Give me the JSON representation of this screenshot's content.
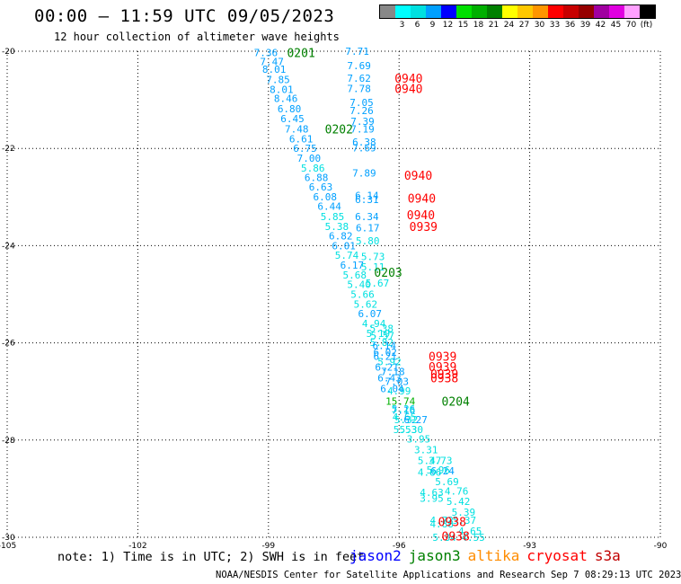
{
  "header": {
    "title": "00:00 – 11:59 UTC 09/05/2023",
    "subtitle": "12 hour collection of altimeter wave heights"
  },
  "legend": {
    "unit": "(ft)",
    "bins": [
      {
        "label": "",
        "color": "#888888"
      },
      {
        "label": "3",
        "color": "#00ffff"
      },
      {
        "label": "6",
        "color": "#00e0e0"
      },
      {
        "label": "9",
        "color": "#00a0ff"
      },
      {
        "label": "12",
        "color": "#0000ff"
      },
      {
        "label": "15",
        "color": "#00e000"
      },
      {
        "label": "18",
        "color": "#00b000"
      },
      {
        "label": "21",
        "color": "#008000"
      },
      {
        "label": "24",
        "color": "#ffff00"
      },
      {
        "label": "27",
        "color": "#ffc800"
      },
      {
        "label": "30",
        "color": "#ff9600"
      },
      {
        "label": "33",
        "color": "#ff0000"
      },
      {
        "label": "36",
        "color": "#c80000"
      },
      {
        "label": "39",
        "color": "#960000"
      },
      {
        "label": "42",
        "color": "#a000a0"
      },
      {
        "label": "45",
        "color": "#e000e0"
      },
      {
        "label": "70",
        "color": "#ffa0ff"
      },
      {
        "label": "",
        "color": "#000000"
      }
    ]
  },
  "footer": {
    "note": "note: 1) Time is in UTC; 2) SWH is in feet",
    "satellites": [
      {
        "name": "jason2",
        "color": "#0000ff"
      },
      {
        "name": "jason3",
        "color": "#008000"
      },
      {
        "name": "altika",
        "color": "#ff8c00"
      },
      {
        "name": "cryosat",
        "color": "#ff0000"
      },
      {
        "name": "s3a",
        "color": "#c00000"
      }
    ],
    "credit": "NOAA/NESDIS Center for Satellite Applications and Research    Sep  7 08:29:13 UTC 2023"
  },
  "chart_data": {
    "type": "scatter",
    "xlim": [
      -105,
      -90
    ],
    "ylim": [
      -30,
      -20
    ],
    "x_ticks": [
      -105,
      -102,
      -99,
      -96,
      -93,
      -90
    ],
    "x_tick_labels": [
      "-105",
      "-102",
      "-99",
      "-96",
      "-93",
      "-90"
    ],
    "y_ticks": [
      -20,
      -22,
      -24,
      -26,
      -28,
      -30
    ],
    "y_tick_labels": [
      "-20",
      "-22",
      "-24",
      "-26",
      "-28",
      "-30"
    ],
    "grid": true,
    "wave_heights": [
      {
        "lon": -99.06,
        "lat": -20.03,
        "text": "7.36"
      },
      {
        "lon": -98.92,
        "lat": -20.21,
        "text": "7.47"
      },
      {
        "lon": -98.87,
        "lat": -20.37,
        "text": "8.01"
      },
      {
        "lon": -98.78,
        "lat": -20.58,
        "text": "7.85"
      },
      {
        "lon": -98.7,
        "lat": -20.79,
        "text": "8.01"
      },
      {
        "lon": -98.6,
        "lat": -20.97,
        "text": "8.46"
      },
      {
        "lon": -98.52,
        "lat": -21.18,
        "text": "6.80"
      },
      {
        "lon": -98.45,
        "lat": -21.39,
        "text": "6.45"
      },
      {
        "lon": -98.35,
        "lat": -21.6,
        "text": "7.48"
      },
      {
        "lon": -98.25,
        "lat": -21.8,
        "text": "6.61"
      },
      {
        "lon": -98.16,
        "lat": -22.0,
        "text": "6.75"
      },
      {
        "lon": -98.07,
        "lat": -22.2,
        "text": "7.00"
      },
      {
        "lon": -97.98,
        "lat": -22.4,
        "text": "5.86"
      },
      {
        "lon": -97.9,
        "lat": -22.6,
        "text": "6.88"
      },
      {
        "lon": -97.8,
        "lat": -22.79,
        "text": "6.63"
      },
      {
        "lon": -97.7,
        "lat": -22.99,
        "text": "6.08"
      },
      {
        "lon": -97.6,
        "lat": -23.19,
        "text": "6.44"
      },
      {
        "lon": -97.53,
        "lat": -23.4,
        "text": "5.85"
      },
      {
        "lon": -97.43,
        "lat": -23.6,
        "text": "5.38"
      },
      {
        "lon": -97.34,
        "lat": -23.8,
        "text": "6.82"
      },
      {
        "lon": -97.27,
        "lat": -24.0,
        "text": "6.01"
      },
      {
        "lon": -97.2,
        "lat": -24.2,
        "text": "5.74"
      },
      {
        "lon": -97.08,
        "lat": -24.4,
        "text": "6.17"
      },
      {
        "lon": -97.02,
        "lat": -24.6,
        "text": "5.68"
      },
      {
        "lon": -96.92,
        "lat": -24.8,
        "text": "5.40"
      },
      {
        "lon": -96.84,
        "lat": -25.0,
        "text": "5.66"
      },
      {
        "lon": -96.77,
        "lat": -25.2,
        "text": "5.62"
      },
      {
        "lon": -96.67,
        "lat": -25.4,
        "text": "6.07"
      },
      {
        "lon": -96.58,
        "lat": -25.6,
        "text": "4.94"
      },
      {
        "lon": -96.48,
        "lat": -25.8,
        "text": "5.19"
      },
      {
        "lon": -96.4,
        "lat": -25.99,
        "text": "5.82"
      },
      {
        "lon": -96.32,
        "lat": -26.19,
        "text": "6.02"
      },
      {
        "lon": -96.22,
        "lat": -26.39,
        "text": "5.92"
      },
      {
        "lon": -96.14,
        "lat": -26.59,
        "text": "7.18"
      },
      {
        "lon": -96.05,
        "lat": -26.79,
        "text": "7.03"
      },
      {
        "lon": -96.0,
        "lat": -26.99,
        "text": "4.99"
      },
      {
        "lon": -95.97,
        "lat": -27.2,
        "text": "15.74"
      },
      {
        "lon": -95.9,
        "lat": -27.38,
        "text": "7.16"
      },
      {
        "lon": -95.88,
        "lat": -27.52,
        "text": "4.65"
      },
      {
        "lon": -95.86,
        "lat": -27.78,
        "text": "5.53"
      },
      {
        "lon": -96.96,
        "lat": -20.0,
        "text": "7.71"
      },
      {
        "lon": -96.92,
        "lat": -20.3,
        "text": "7.69"
      },
      {
        "lon": -96.92,
        "lat": -20.55,
        "text": "7.62"
      },
      {
        "lon": -96.92,
        "lat": -20.77,
        "text": "7.78"
      },
      {
        "lon": -96.86,
        "lat": -21.05,
        "text": "7.05"
      },
      {
        "lon": -96.86,
        "lat": -21.22,
        "text": "7.26"
      },
      {
        "lon": -96.84,
        "lat": -21.44,
        "text": "7.39"
      },
      {
        "lon": -96.84,
        "lat": -21.6,
        "text": "7.19"
      },
      {
        "lon": -96.8,
        "lat": -21.87,
        "text": "6.38"
      },
      {
        "lon": -96.8,
        "lat": -21.99,
        "text": "7.69"
      },
      {
        "lon": -96.8,
        "lat": -22.5,
        "text": "7.89"
      },
      {
        "lon": -96.74,
        "lat": -22.97,
        "text": "6.14"
      },
      {
        "lon": -96.74,
        "lat": -23.05,
        "text": "6.31"
      },
      {
        "lon": -96.74,
        "lat": -23.4,
        "text": "6.34"
      },
      {
        "lon": -96.72,
        "lat": -23.63,
        "text": "6.17"
      },
      {
        "lon": -96.72,
        "lat": -23.9,
        "text": "5.80"
      },
      {
        "lon": -96.6,
        "lat": -24.22,
        "text": "5.73"
      },
      {
        "lon": -96.6,
        "lat": -24.44,
        "text": "5.11"
      },
      {
        "lon": -96.5,
        "lat": -24.77,
        "text": "5.67"
      },
      {
        "lon": -96.4,
        "lat": -25.7,
        "text": "5.38"
      },
      {
        "lon": -96.38,
        "lat": -25.85,
        "text": "5.57"
      },
      {
        "lon": -96.34,
        "lat": -26.05,
        "text": "6.14"
      },
      {
        "lon": -96.32,
        "lat": -26.28,
        "text": "6.21"
      },
      {
        "lon": -96.28,
        "lat": -26.5,
        "text": "6.21"
      },
      {
        "lon": -96.22,
        "lat": -26.72,
        "text": "6.43"
      },
      {
        "lon": -96.16,
        "lat": -26.94,
        "text": "6.04"
      },
      {
        "lon": -95.9,
        "lat": -27.36,
        "text": "5.26"
      },
      {
        "lon": -95.84,
        "lat": -27.58,
        "text": "5.32"
      },
      {
        "lon": -95.62,
        "lat": -27.58,
        "text": "6.27"
      },
      {
        "lon": -95.72,
        "lat": -27.78,
        "text": "5.30"
      },
      {
        "lon": -95.55,
        "lat": -27.98,
        "text": "3.95"
      },
      {
        "lon": -95.38,
        "lat": -28.2,
        "text": "3.31"
      },
      {
        "lon": -95.3,
        "lat": -28.42,
        "text": "5.47"
      },
      {
        "lon": -95.05,
        "lat": -28.42,
        "text": "3.73"
      },
      {
        "lon": -95.0,
        "lat": -28.63,
        "text": "6.24"
      },
      {
        "lon": -95.3,
        "lat": -28.66,
        "text": "4.86"
      },
      {
        "lon": -95.1,
        "lat": -28.61,
        "text": "5.96"
      },
      {
        "lon": -94.9,
        "lat": -28.85,
        "text": "5.69"
      },
      {
        "lon": -94.68,
        "lat": -29.05,
        "text": "4.76"
      },
      {
        "lon": -95.25,
        "lat": -29.08,
        "text": "4.63"
      },
      {
        "lon": -95.25,
        "lat": -29.2,
        "text": "3.95"
      },
      {
        "lon": -94.64,
        "lat": -29.26,
        "text": "5.42"
      },
      {
        "lon": -94.52,
        "lat": -29.48,
        "text": "5.39"
      },
      {
        "lon": -95.02,
        "lat": -29.65,
        "text": "4.72"
      },
      {
        "lon": -95.02,
        "lat": -29.72,
        "text": "4.88"
      },
      {
        "lon": -94.5,
        "lat": -29.65,
        "text": "5.37"
      },
      {
        "lon": -94.37,
        "lat": -29.87,
        "text": "4.65"
      },
      {
        "lon": -94.3,
        "lat": -30.0,
        "text": "4.55"
      },
      {
        "lon": -94.96,
        "lat": -30.0,
        "text": "5.34"
      }
    ],
    "pass_labels": [
      {
        "lon": -98.25,
        "lat": -20.03,
        "text": "0201",
        "color": "#008000"
      },
      {
        "lon": -97.38,
        "lat": -21.6,
        "text": "0202",
        "color": "#008000"
      },
      {
        "lon": -96.25,
        "lat": -24.55,
        "text": "0203",
        "color": "#008000"
      },
      {
        "lon": -94.7,
        "lat": -27.2,
        "text": "0204",
        "color": "#008000"
      },
      {
        "lon": -95.78,
        "lat": -20.55,
        "text": "0940",
        "color": "#ff0000"
      },
      {
        "lon": -95.78,
        "lat": -20.77,
        "text": "0940",
        "color": "#ff0000"
      },
      {
        "lon": -95.56,
        "lat": -22.55,
        "text": "0940",
        "color": "#ff0000"
      },
      {
        "lon": -95.48,
        "lat": -23.02,
        "text": "0940",
        "color": "#ff0000"
      },
      {
        "lon": -95.5,
        "lat": -23.36,
        "text": "0940",
        "color": "#ff0000"
      },
      {
        "lon": -95.44,
        "lat": -23.6,
        "text": "0939",
        "color": "#ff0000"
      },
      {
        "lon": -95.0,
        "lat": -26.28,
        "text": "0939",
        "color": "#ff0000"
      },
      {
        "lon": -95.0,
        "lat": -26.49,
        "text": "0939",
        "color": "#ff0000"
      },
      {
        "lon": -94.96,
        "lat": -26.64,
        "text": "0939",
        "color": "#ff0000"
      },
      {
        "lon": -94.96,
        "lat": -26.72,
        "text": "0938",
        "color": "#ff0000"
      },
      {
        "lon": -94.78,
        "lat": -29.68,
        "text": "0938",
        "color": "#ff0000"
      },
      {
        "lon": -94.7,
        "lat": -29.97,
        "text": "0938",
        "color": "#ff0000"
      }
    ]
  }
}
